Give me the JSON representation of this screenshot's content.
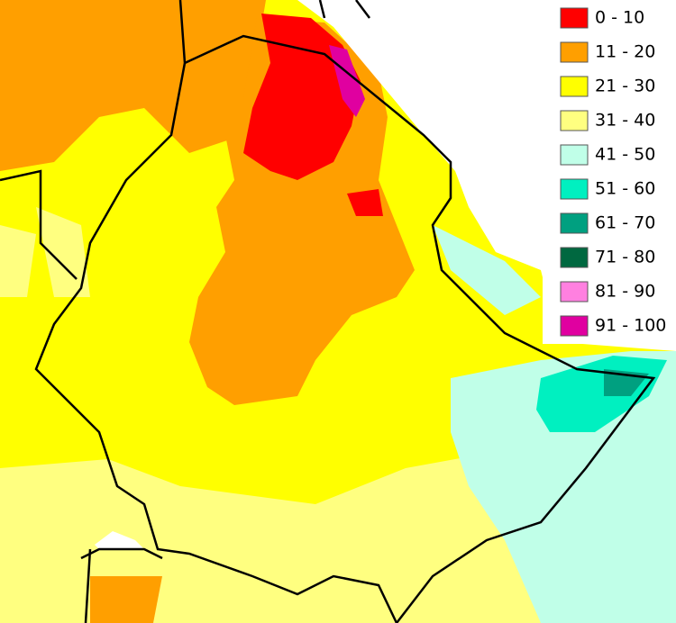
{
  "legend": {
    "items": [
      {
        "label": "0 - 10",
        "color": "#ff0000"
      },
      {
        "label": "11 - 20",
        "color": "#ff9f00"
      },
      {
        "label": "21 - 30",
        "color": "#ffff00"
      },
      {
        "label": "31 - 40",
        "color": "#ffff80"
      },
      {
        "label": "41 - 50",
        "color": "#c0ffe8"
      },
      {
        "label": "51 - 60",
        "color": "#00f0c0"
      },
      {
        "label": "61 - 70",
        "color": "#00a080"
      },
      {
        "label": "71 - 80",
        "color": "#006840"
      },
      {
        "label": "81 - 90",
        "color": "#ff80e0"
      },
      {
        "label": "91 - 100",
        "color": "#e000a0"
      }
    ]
  }
}
